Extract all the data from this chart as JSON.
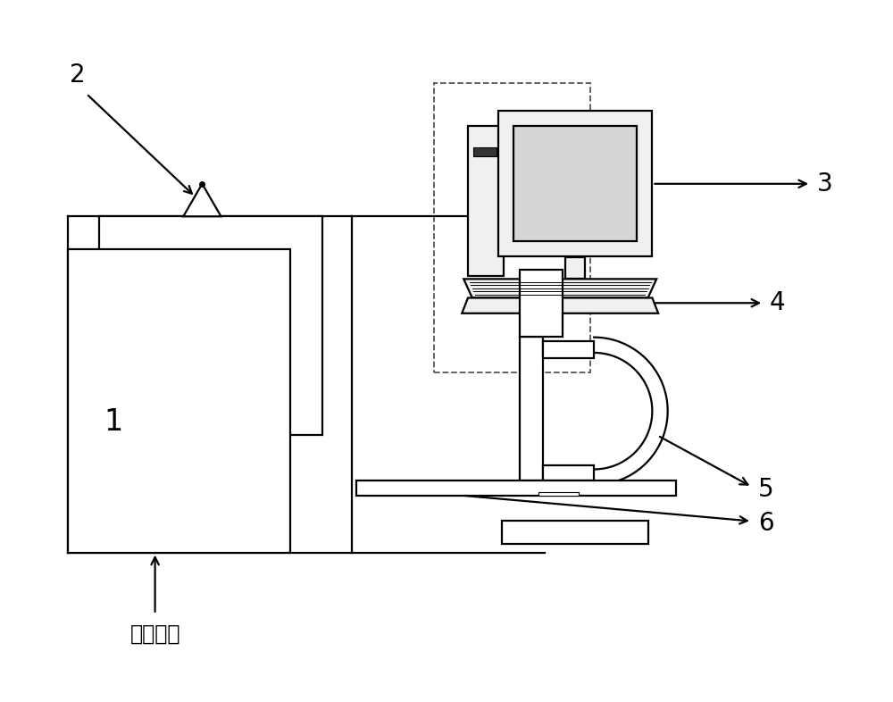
{
  "bg_color": "#ffffff",
  "lc": "#000000",
  "dc": "#555555",
  "label_1": "1",
  "label_2": "2",
  "label_3": "3",
  "label_4": "4",
  "label_5": "5",
  "label_6": "6",
  "label_inlet": "样品入口",
  "lfs": 20,
  "fig_w": 10.0,
  "fig_h": 7.86,
  "xlim": [
    0,
    10
  ],
  "ylim": [
    0,
    7.86
  ]
}
